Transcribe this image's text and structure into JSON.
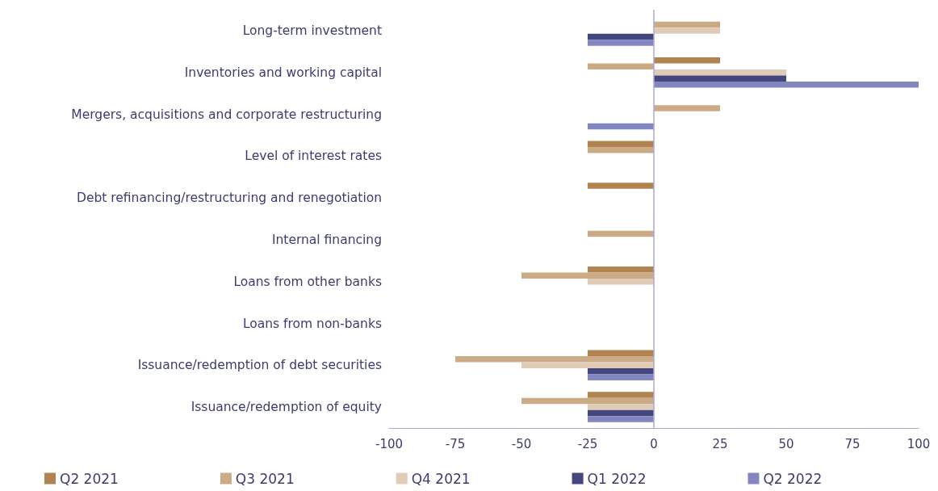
{
  "chart_data": {
    "type": "bar",
    "orientation": "horizontal",
    "categories": [
      "Long-term investment",
      "Inventories and working capital",
      "Mergers, acquisitions and corporate restructuring",
      "Level of interest rates",
      "Debt refinancing/restructuring and renegotiation",
      "Internal financing",
      "Loans from other banks",
      "Loans from non-banks",
      "Issuance/redemption of debt securities",
      "Issuance/redemption of equity"
    ],
    "series": [
      {
        "name": "Q2 2021",
        "color": "#b08350",
        "values": [
          0,
          25,
          0,
          -25,
          -25,
          0,
          -25,
          0,
          -25,
          -25
        ]
      },
      {
        "name": "Q3 2021",
        "color": "#cbaa86",
        "values": [
          25,
          -25,
          25,
          -25,
          0,
          -25,
          -50,
          0,
          -75,
          -50
        ]
      },
      {
        "name": "Q4 2021",
        "color": "#e0ccb6",
        "values": [
          25,
          50,
          0,
          0,
          0,
          0,
          -25,
          0,
          -50,
          -25
        ]
      },
      {
        "name": "Q1 2022",
        "color": "#44467e",
        "values": [
          -25,
          50,
          0,
          0,
          0,
          0,
          0,
          0,
          -25,
          -25
        ]
      },
      {
        "name": "Q2 2022",
        "color": "#8486c0",
        "values": [
          -25,
          100,
          -25,
          0,
          0,
          0,
          0,
          0,
          -25,
          -25
        ]
      }
    ],
    "xlim": [
      -100,
      100
    ],
    "xticks": [
      -100,
      -75,
      -50,
      -25,
      0,
      25,
      50,
      75,
      100
    ],
    "ref_lines": [
      {
        "axis": "x",
        "value": 0
      }
    ],
    "grid": false,
    "legend": "bottom"
  }
}
